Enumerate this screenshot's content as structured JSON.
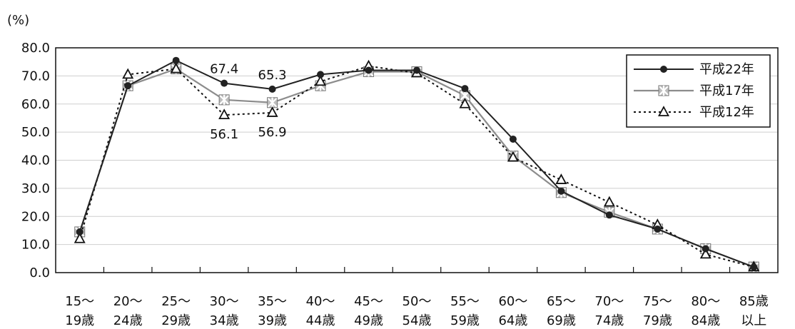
{
  "chart_data": {
    "type": "line",
    "unit_label": "(%)",
    "ylim": [
      0,
      80
    ],
    "y_ticks": [
      "0.0",
      "10.0",
      "20.0",
      "30.0",
      "40.0",
      "50.0",
      "60.0",
      "70.0",
      "80.0"
    ],
    "categories": [
      [
        "15～",
        "19歳"
      ],
      [
        "20～",
        "24歳"
      ],
      [
        "25～",
        "29歳"
      ],
      [
        "30～",
        "34歳"
      ],
      [
        "35～",
        "39歳"
      ],
      [
        "40～",
        "44歳"
      ],
      [
        "45～",
        "49歳"
      ],
      [
        "50～",
        "54歳"
      ],
      [
        "55～",
        "59歳"
      ],
      [
        "60～",
        "64歳"
      ],
      [
        "65～",
        "69歳"
      ],
      [
        "70～",
        "74歳"
      ],
      [
        "75～",
        "79歳"
      ],
      [
        "80～",
        "84歳"
      ],
      [
        "85歳",
        "以上"
      ]
    ],
    "series": [
      {
        "name": "平成22年",
        "style": "solid-dot",
        "color": "#222222",
        "values": [
          14.5,
          66.5,
          75.5,
          67.4,
          65.3,
          70.5,
          72.0,
          72.0,
          65.5,
          47.5,
          29.0,
          20.5,
          15.5,
          8.5,
          2.0
        ]
      },
      {
        "name": "平成17年",
        "style": "gray-box",
        "color": "#888888",
        "values": [
          14.5,
          66.5,
          72.5,
          61.5,
          60.5,
          66.5,
          71.5,
          71.5,
          63.0,
          41.5,
          28.5,
          21.5,
          15.5,
          8.5,
          2.0
        ]
      },
      {
        "name": "平成12年",
        "style": "dotted-triangle",
        "color": "#222222",
        "values": [
          12.0,
          70.5,
          72.5,
          56.1,
          56.9,
          68.0,
          73.5,
          71.0,
          60.0,
          41.0,
          33.0,
          25.0,
          17.0,
          6.5,
          2.0
        ]
      }
    ],
    "annotations": [
      {
        "text": "67.4",
        "series": 0,
        "index": 3,
        "pos": "above"
      },
      {
        "text": "65.3",
        "series": 0,
        "index": 4,
        "pos": "above"
      },
      {
        "text": "56.1",
        "series": 2,
        "index": 3,
        "pos": "below"
      },
      {
        "text": "56.9",
        "series": 2,
        "index": 4,
        "pos": "below"
      }
    ],
    "grid": true,
    "legend_position": "top-right"
  }
}
